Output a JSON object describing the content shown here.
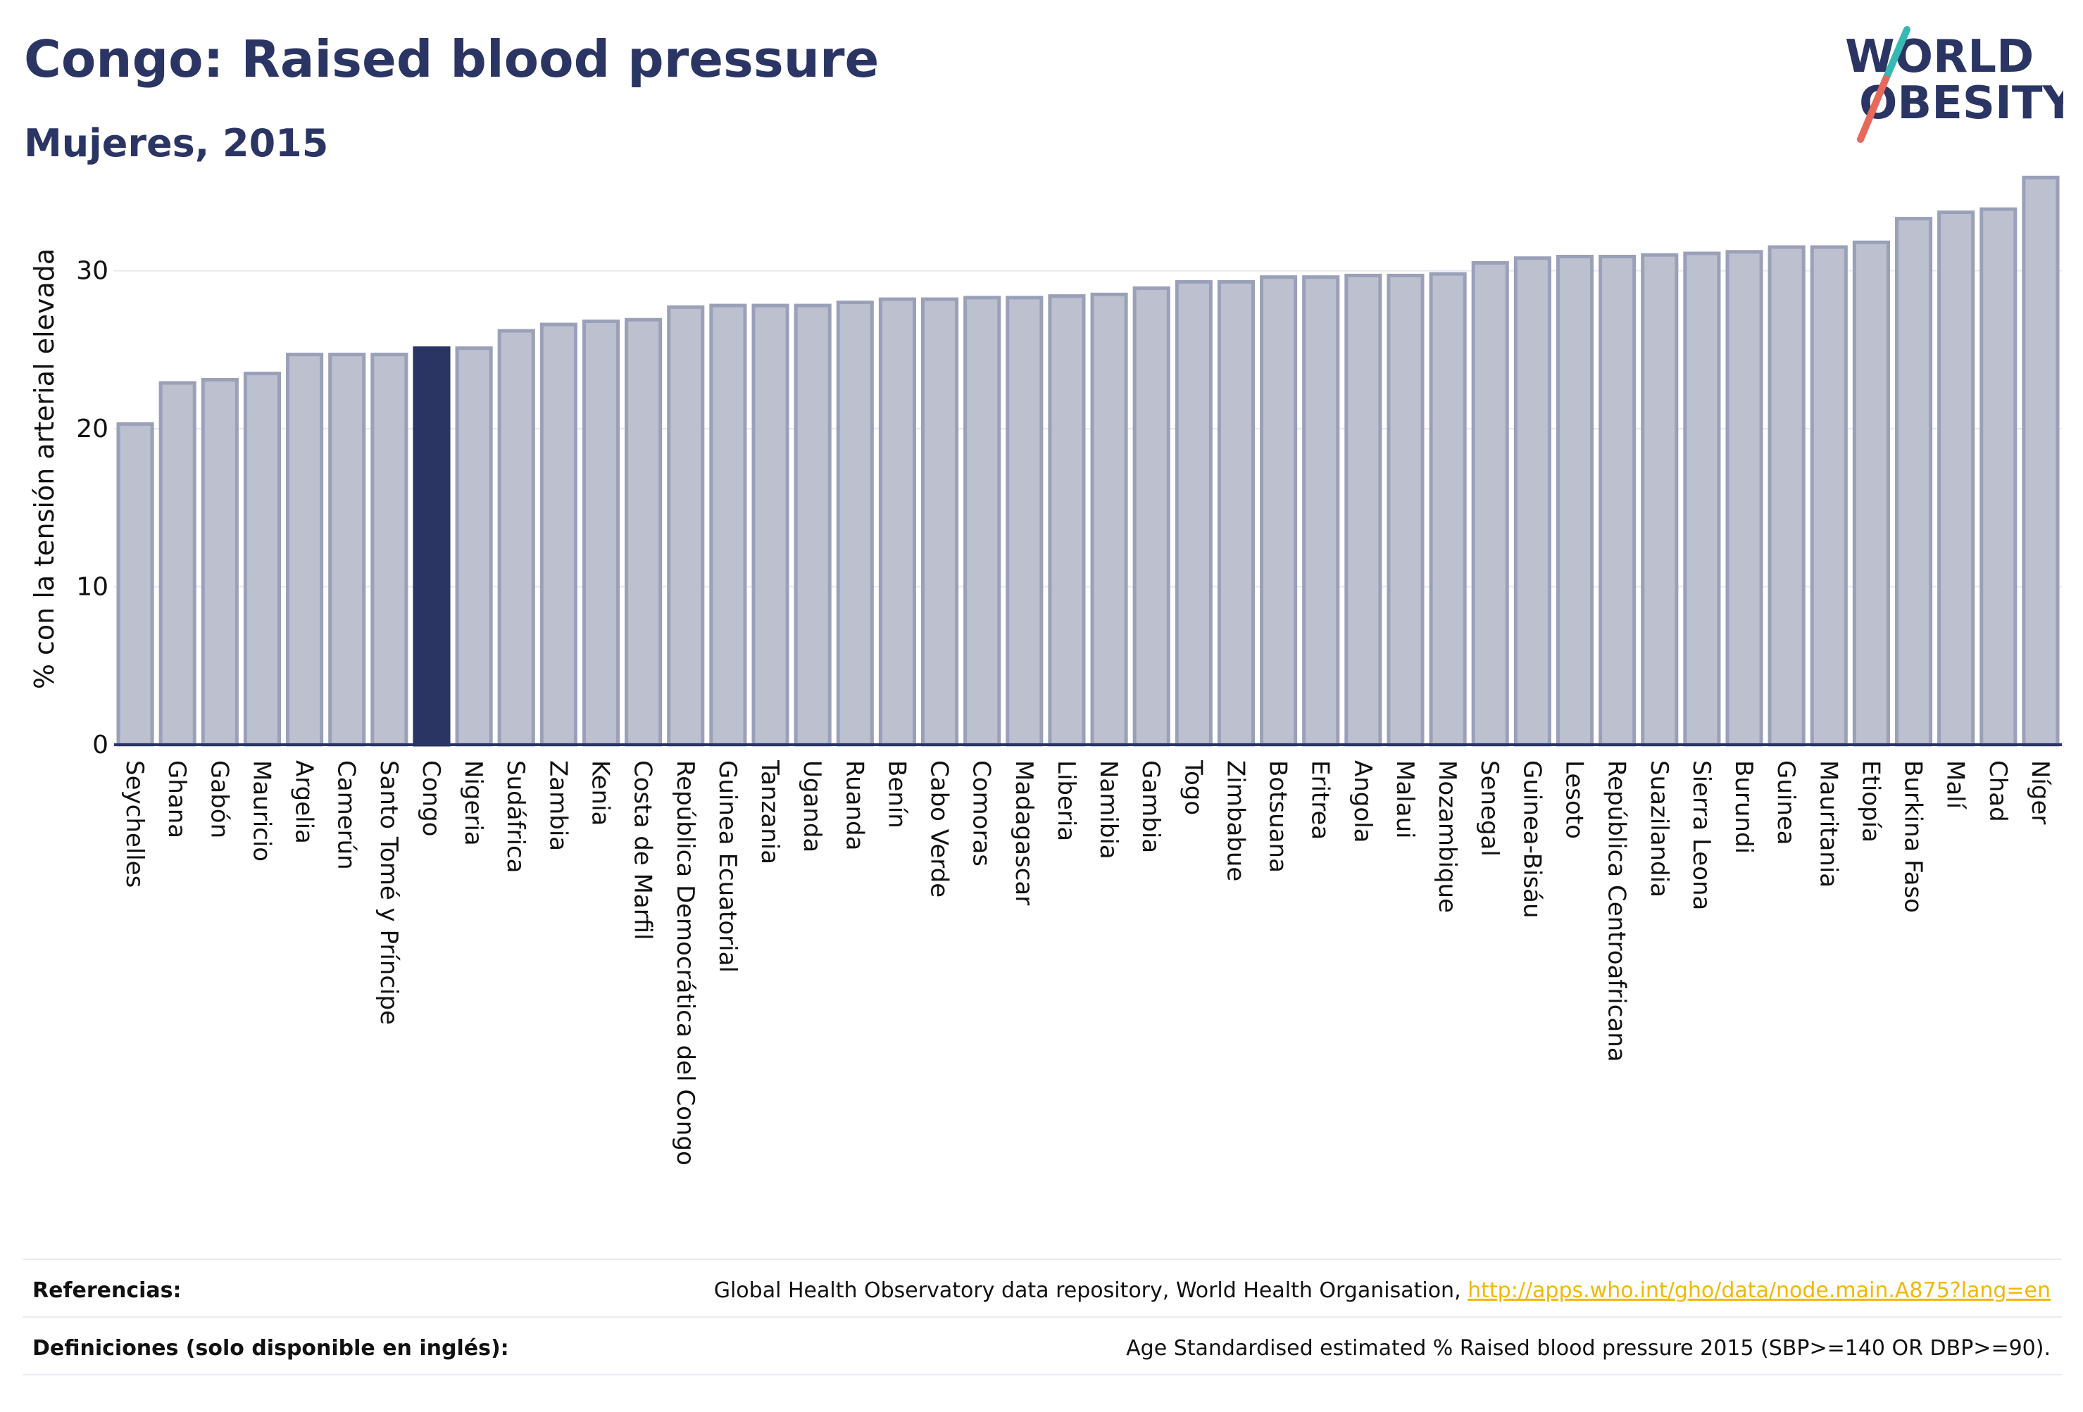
{
  "title": "Congo: Raised blood pressure",
  "subtitle": "Mujeres, 2015",
  "logo": {
    "line1": "WORLD",
    "line2": "OBESITY"
  },
  "colors": {
    "bar_default": "#bcc0cf",
    "bar_border": "#9aa0b8",
    "bar_highlight": "#2b3564",
    "title": "#2b3564",
    "link": "#f2b705",
    "logo_teal": "#36b9b3",
    "logo_red": "#e8685a"
  },
  "chart_data": {
    "type": "bar",
    "ylabel": "% con la tensión arterial elevada",
    "xlabel": "",
    "ylim": [
      0,
      36
    ],
    "yticks": [
      0,
      10,
      20,
      30
    ],
    "grid": true,
    "highlight": "Congo",
    "categories": [
      "Seychelles",
      "Ghana",
      "Gabón",
      "Mauricio",
      "Argelia",
      "Camerún",
      "Santo Tomé y Príncipe",
      "Congo",
      "Nigeria",
      "Sudáfrica",
      "Zambia",
      "Kenia",
      "Costa de Marfil",
      "República Democrática del Congo",
      "Guinea Ecuatorial",
      "Tanzania",
      "Uganda",
      "Ruanda",
      "Benín",
      "Cabo Verde",
      "Comoras",
      "Madagascar",
      "Liberia",
      "Namibia",
      "Gambia",
      "Togo",
      "Zimbabue",
      "Botsuana",
      "Eritrea",
      "Angola",
      "Malaui",
      "Mozambique",
      "Senegal",
      "Guinea-Bisáu",
      "Lesoto",
      "República Centroafricana",
      "Suazilandia",
      "Sierra Leona",
      "Burundi",
      "Guinea",
      "Mauritania",
      "Etiopía",
      "Burkina Faso",
      "Malí",
      "Chad",
      "Níger"
    ],
    "values": [
      20.3,
      22.9,
      23.1,
      23.5,
      24.7,
      24.7,
      24.7,
      25.1,
      25.1,
      26.2,
      26.6,
      26.8,
      26.9,
      27.7,
      27.8,
      27.8,
      27.8,
      28.0,
      28.2,
      28.2,
      28.3,
      28.3,
      28.4,
      28.5,
      28.9,
      29.3,
      29.3,
      29.6,
      29.6,
      29.7,
      29.7,
      29.8,
      30.5,
      30.8,
      30.9,
      30.9,
      31.0,
      31.1,
      31.2,
      31.5,
      31.5,
      31.8,
      33.3,
      33.7,
      33.9,
      35.9
    ]
  },
  "footer": {
    "references_label": "Referencias:",
    "references_text": "Global Health Observatory data repository, World Health Organisation, ",
    "references_link": "http://apps.who.int/gho/data/node.main.A875?lang=en",
    "definitions_label": "Definiciones (solo disponible en inglés):",
    "definitions_text": "Age Standardised estimated % Raised blood pressure 2015 (SBP>=140 OR DBP>=90)."
  }
}
